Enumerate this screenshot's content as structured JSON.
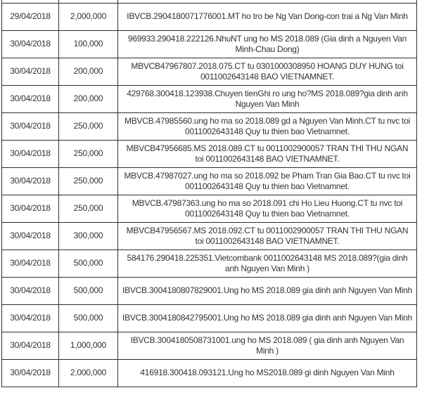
{
  "colors": {
    "border": "#2e2e2e",
    "text": "#333333",
    "background": "#ffffff"
  },
  "table": {
    "rows": [
      {
        "date": "29/04/2018",
        "amount": "2,000,000",
        "description": "IBVCB.2904180071776001.MT ho tro be Ng Van Dong-con trai a Ng Van Minh"
      },
      {
        "date": "30/04/2018",
        "amount": "100,000",
        "description": "969933.290418.222126.NhuNT ung ho MS 2018.089 (Gia dinh a Nguyen Van Minh-Chau Dong)"
      },
      {
        "date": "30/04/2018",
        "amount": "200,000",
        "description": "MBVCB47967807.2018.075.CT tu 0301000308950 HOANG DUY HUNG toi 0011002643148 BAO VIETNAMNET."
      },
      {
        "date": "30/04/2018",
        "amount": "200,000",
        "description": "429768.300418.123938.Chuyen tienGhi ro ung ho?MS 2018.089?gia dinh anh Nguyen Van Minh"
      },
      {
        "date": "30/04/2018",
        "amount": "250,000",
        "description": "MBVCB.47985560.ung ho ma so 2018.089 gd a Nguyen Van Minh.CT tu nvc toi 0011002643148 Quy tu thien bao Vietnamnet."
      },
      {
        "date": "30/04/2018",
        "amount": "250,000",
        "description": "MBVCB47956685.MS 2018.089.CT tu 0011002900057 TRAN THI THU NGAN toi 0011002643148 BAO VIETNAMNET."
      },
      {
        "date": "30/04/2018",
        "amount": "250,000",
        "description": "MBVCB.47987027.ung ho ma so 2018.092 be Pham Tran Gia Bao.CT tu nvc toi 0011002643148 Quy tu thien bao Vietnamnet."
      },
      {
        "date": "30/04/2018",
        "amount": "250,000",
        "description": "MBVCB.47987363.ung ho ma so 2018.091 chi Ho Lieu Huong.CT tu nvc toi 0011002643148 Quy tu thien bao Vietnamnet."
      },
      {
        "date": "30/04/2018",
        "amount": "300,000",
        "description": "MBVCB47956567.MS 2018.092.CT tu 0011002900057 TRAN THI THU NGAN toi 0011002643148 BAO VIETNAMNET."
      },
      {
        "date": "30/04/2018",
        "amount": "500,000",
        "description": "584176.290418.225351.Vietcombank 0011002643148 MS 2018.089?(gia dinh anh Nguyen Van Minh )"
      },
      {
        "date": "30/04/2018",
        "amount": "500,000",
        "description": "IBVCB.3004180807829001.Ung ho MS 2018.089 gia dinh anh Nguyen Van Minh"
      },
      {
        "date": "30/04/2018",
        "amount": "500,000",
        "description": "IBVCB.3004180842795001.Ung ho MS 2018.089 gia dinh anh Nguyen Van Minh"
      },
      {
        "date": "30/04/2018",
        "amount": "1,000,000",
        "description": "IBVCB.3004180508731001.ung ho MS 2018.089 ( gia dinh anh Nguyen Van Minh )"
      },
      {
        "date": "30/04/2018",
        "amount": "2,000,000",
        "description": "416918.300418.093121.Ung ho MS2018.089 gi dinh Nguyen Van Minh"
      }
    ]
  }
}
